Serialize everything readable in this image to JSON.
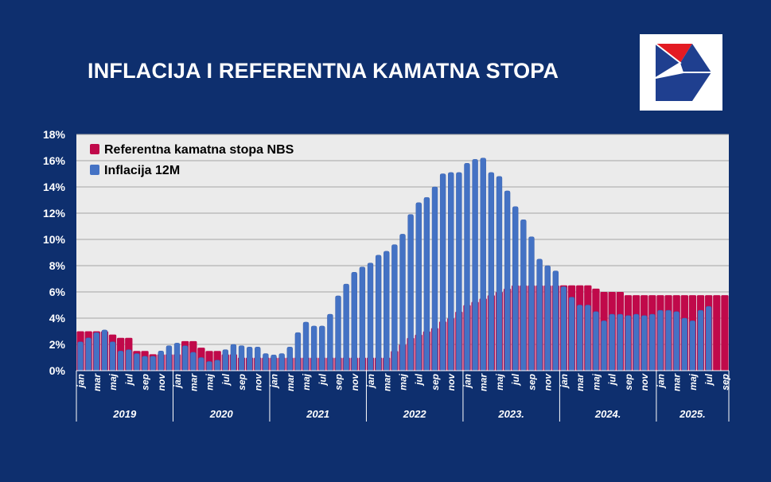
{
  "title": "INFLACIJA I REFERENTNA KAMATNA STOPA",
  "colors": {
    "background": "#0e2f6e",
    "plot_area": "#ebebeb",
    "policy_rate": "#c0094a",
    "inflation": "#4472c4",
    "inflation_edge": "#3a62b0",
    "logo_red": "#e31b23",
    "logo_blue": "#1f3f8f"
  },
  "icons": {
    "logo": "nbs-logo-icon"
  },
  "chart_data": {
    "type": "bar",
    "title": "INFLACIJA I REFERENTNA KAMATNA STOPA",
    "xlabel": "",
    "ylabel": "",
    "ylim": [
      0,
      18
    ],
    "yticks": [
      "0%",
      "2%",
      "4%",
      "6%",
      "8%",
      "10%",
      "12%",
      "14%",
      "16%",
      "18%"
    ],
    "grid": true,
    "legend_position": "top-left",
    "years": [
      {
        "label": "2019",
        "months": 12
      },
      {
        "label": "2020",
        "months": 12
      },
      {
        "label": "2021",
        "months": 12
      },
      {
        "label": "2022",
        "months": 12
      },
      {
        "label": "2023.",
        "months": 12
      },
      {
        "label": "2024.",
        "months": 12
      },
      {
        "label": "2025.",
        "months": 9
      }
    ],
    "month_labels": [
      "jan",
      "",
      "mar",
      "",
      "maj",
      "",
      "jul",
      "",
      "sep",
      "",
      "nov",
      ""
    ],
    "series": [
      {
        "name": "Referentna kamatna stopa NBS",
        "kind": "policy_rate",
        "values": [
          3.0,
          3.0,
          3.0,
          3.0,
          2.75,
          2.5,
          2.5,
          1.5,
          1.5,
          1.25,
          1.25,
          1.25,
          1.25,
          2.25,
          2.25,
          1.75,
          1.5,
          1.5,
          1.25,
          1.25,
          1.0,
          1.0,
          1.0,
          1.0,
          1.0,
          1.0,
          1.0,
          1.0,
          1.0,
          1.0,
          1.0,
          1.0,
          1.0,
          1.0,
          1.0,
          1.0,
          1.0,
          1.0,
          1.0,
          1.5,
          2.0,
          2.5,
          2.75,
          3.0,
          3.25,
          3.75,
          4.0,
          4.5,
          5.0,
          5.25,
          5.5,
          5.75,
          6.0,
          6.25,
          6.5,
          6.5,
          6.5,
          6.5,
          6.5,
          6.5,
          6.5,
          6.5,
          6.5,
          6.5,
          6.25,
          6.0,
          6.0,
          6.0,
          5.75,
          5.75,
          5.75,
          5.75,
          5.75,
          5.75,
          5.75,
          5.75,
          5.75,
          5.75,
          5.75,
          5.75,
          5.75
        ]
      },
      {
        "name": "Inflacija 12M",
        "kind": "inflation",
        "values": [
          2.2,
          2.5,
          2.9,
          3.1,
          2.2,
          1.5,
          1.6,
          1.3,
          1.1,
          1.1,
          1.5,
          1.9,
          2.1,
          1.9,
          1.4,
          1.0,
          0.7,
          0.8,
          1.6,
          2.0,
          1.9,
          1.8,
          1.8,
          1.3,
          1.2,
          1.3,
          1.8,
          2.9,
          3.7,
          3.4,
          3.4,
          4.3,
          5.7,
          6.6,
          7.5,
          7.9,
          8.2,
          8.8,
          9.1,
          9.6,
          10.4,
          11.9,
          12.8,
          13.2,
          14.0,
          15.0,
          15.1,
          15.1,
          15.8,
          16.1,
          16.2,
          15.1,
          14.8,
          13.7,
          12.5,
          11.5,
          10.2,
          8.5,
          8.0,
          7.6,
          6.4,
          5.6,
          5.0,
          5.0,
          4.5,
          3.8,
          4.3,
          4.3,
          4.2,
          4.3,
          4.2,
          4.3,
          4.6,
          4.6,
          4.5,
          4.0,
          3.8,
          4.6,
          4.9,
          null,
          null
        ]
      }
    ]
  }
}
